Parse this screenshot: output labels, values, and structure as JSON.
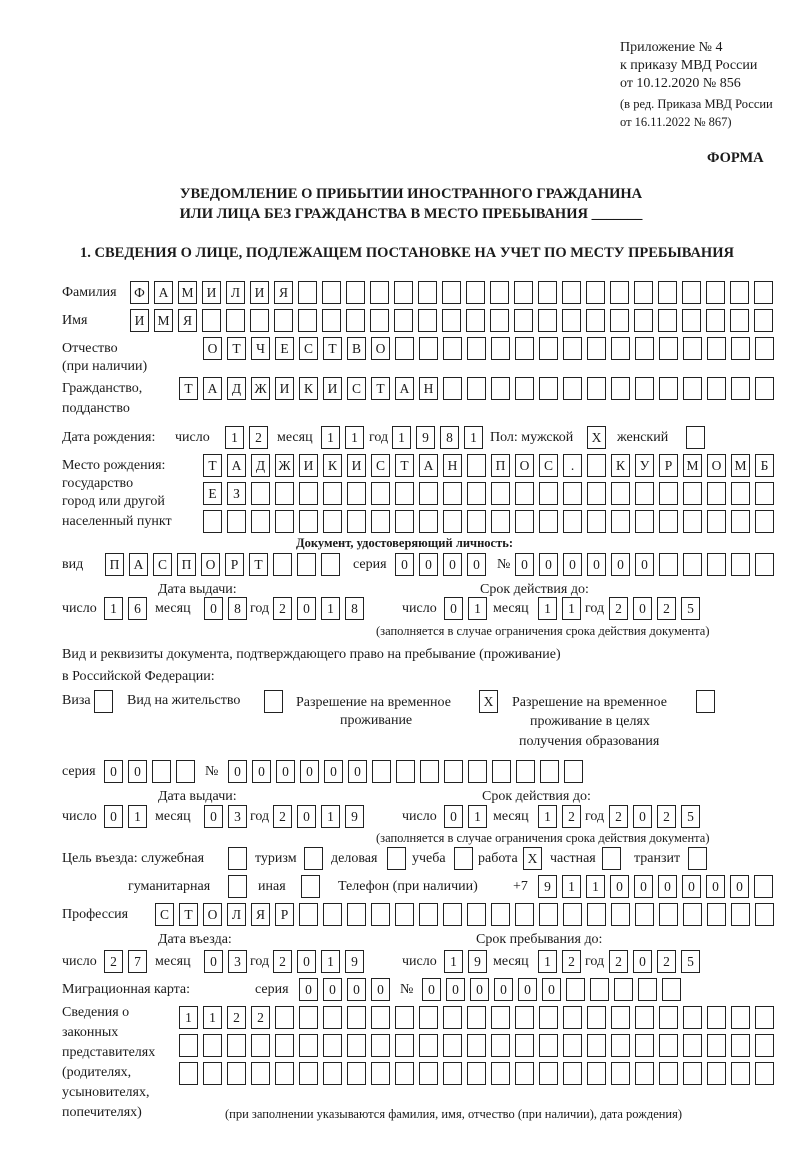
{
  "header": {
    "annex": "Приложение № 4",
    "order": "к приказу МВД России",
    "order_date": "от 10.12.2020 № 856",
    "amend1": "(в ред. Приказа МВД России",
    "amend2": "от 16.11.2022 № 867)",
    "form": "ФОРМА",
    "title1": "УВЕДОМЛЕНИЕ О ПРИБЫТИИ ИНОСТРАННОГО ГРАЖДАНИНА",
    "title2": "ИЛИ ЛИЦА БЕЗ ГРАЖДАНСТВА В МЕСТО ПРЕБЫВАНИЯ _______",
    "section1": "1. СВЕДЕНИЯ О ЛИЦЕ, ПОДЛЕЖАЩЕМ ПОСТАНОВКЕ НА УЧЕТ ПО МЕСТУ ПРЕБЫВАНИЯ"
  },
  "labels": {
    "surname": "Фамилия",
    "name": "Имя",
    "patronymic1": "Отчество",
    "patronymic2": "(при наличии)",
    "citizenship1": "Гражданство,",
    "citizenship2": "подданство",
    "birth_date": "Дата рождения:",
    "day": "число",
    "month": "месяц",
    "year": "год",
    "sex_male": "Пол: мужской",
    "sex_female": "женский",
    "birthplace1": "Место рождения:",
    "birthplace2": "государство",
    "birthplace3": "город или другой",
    "birthplace4": "населенный пункт",
    "id_doc": "Документ, удостоверяющий личность:",
    "doc_type": "вид",
    "series": "серия",
    "number": "№",
    "issue_date": "Дата выдачи:",
    "valid_until": "Срок действия до:",
    "valid_note": "(заполняется в случае ограничения срока действия документа)",
    "permit1": "Вид и реквизиты документа, подтверждающего право на пребывание (проживание)",
    "permit2": "в Российской Федерации:",
    "visa": "Виза",
    "residence": "Вид на жительство",
    "temp1": "Разрешение на временное",
    "temp2": "проживание",
    "edu1": "Разрешение на временное",
    "edu2": "проживание в целях",
    "edu3": "получения образования",
    "purpose": "Цель въезда: служебная",
    "tourism": "туризм",
    "business": "деловая",
    "study": "учеба",
    "work": "работа",
    "private": "частная",
    "transit": "транзит",
    "humanitarian": "гуманитарная",
    "other": "иная",
    "phone": "Телефон (при наличии)",
    "phone_prefix": "+7",
    "profession": "Профессия",
    "entry_date": "Дата въезда:",
    "stay_until": "Срок пребывания до:",
    "migration_card": "Миграционная карта:",
    "reps1": "Сведения о",
    "reps2": "законных",
    "reps3": "представителях",
    "reps4": "(родителях,",
    "reps5": "усыновителях,",
    "reps6": "попечителях)",
    "reps_note": "(при заполнении указываются фамилия, имя, отчество (при наличии), дата рождения)"
  },
  "fields": {
    "surname": "ФАМИЛИЯ",
    "name": "ИМЯ",
    "patronymic": "ОТЧЕСТВО",
    "citizenship": "ТАДЖИКИСТАН",
    "birth": {
      "day": "12",
      "month": "11",
      "year": "1981"
    },
    "sex": {
      "male": "X",
      "female": ""
    },
    "birthplace": [
      "ТАДЖИКИСТАН ПОС. КУРМОМБ",
      "ЕЗ",
      ""
    ],
    "id_doc": {
      "type": "ПАСПОРТ",
      "series": "0000",
      "number": "000000",
      "issued": {
        "day": "16",
        "month": "08",
        "year": "2018"
      },
      "valid": {
        "day": "01",
        "month": "11",
        "year": "2025"
      }
    },
    "permit_type": {
      "visa": "",
      "residence": "",
      "temporary_residence": "X",
      "temporary_residence_education": ""
    },
    "permit": {
      "series": "00",
      "number": "000000",
      "issued": {
        "day": "01",
        "month": "03",
        "year": "2019"
      },
      "valid": {
        "day": "01",
        "month": "12",
        "year": "2025"
      }
    },
    "purpose": {
      "service": "",
      "tourism": "",
      "business": "",
      "study": "",
      "work": "X",
      "private": "",
      "transit": "",
      "humanitarian": "",
      "other": ""
    },
    "phone": "911000000",
    "profession": "СТОЛЯР",
    "entry": {
      "day": "27",
      "month": "03",
      "year": "2019"
    },
    "stay_until": {
      "day": "19",
      "month": "12",
      "year": "2025"
    },
    "migration_card": {
      "series": "0000",
      "number": "000000"
    },
    "legal_representatives": [
      "1122",
      "",
      ""
    ]
  }
}
